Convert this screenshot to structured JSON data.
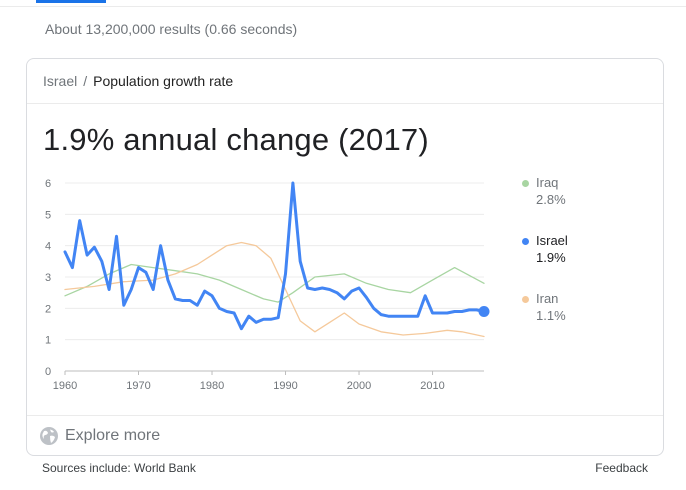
{
  "search": {
    "result_stats": "About 13,200,000 results (0.66 seconds)"
  },
  "card": {
    "breadcrumb": {
      "parent": "Israel",
      "separator": "/",
      "current": "Population growth rate"
    },
    "headline": "1.9% annual change (2017)",
    "explore_label": "Explore more",
    "explore_icon": "globe-icon"
  },
  "footer": {
    "sources": "Sources include: World Bank",
    "feedback": "Feedback"
  },
  "legend": [
    {
      "name": "Iraq",
      "value": "2.8%",
      "color": "#a8d5a2",
      "active": false
    },
    {
      "name": "Israel",
      "value": "1.9%",
      "color": "#4285f4",
      "active": true
    },
    {
      "name": "Iran",
      "value": "1.1%",
      "color": "#f5c99b",
      "active": false
    }
  ],
  "chart_data": {
    "type": "line",
    "ylim": [
      0,
      6
    ],
    "xlim": [
      1960,
      2017
    ],
    "yticks": [
      "0",
      "1",
      "2",
      "3",
      "4",
      "5",
      "6"
    ],
    "xticks": [
      "1960",
      "1970",
      "1980",
      "1990",
      "2000",
      "2010"
    ],
    "grid": true,
    "legend_position": "right",
    "series": [
      {
        "name": "Iraq",
        "color": "#a8d5a2",
        "x": [
          1960,
          1963,
          1966,
          1969,
          1972,
          1975,
          1978,
          1981,
          1984,
          1987,
          1989,
          1991,
          1994,
          1998,
          2001,
          2004,
          2007,
          2010,
          2013,
          2017
        ],
        "values": [
          2.4,
          2.7,
          3.1,
          3.4,
          3.3,
          3.2,
          3.1,
          2.9,
          2.6,
          2.3,
          2.2,
          2.5,
          3.0,
          3.1,
          2.8,
          2.6,
          2.5,
          2.9,
          3.3,
          2.8
        ]
      },
      {
        "name": "Israel",
        "color": "#4285f4",
        "x": [
          1960,
          1961,
          1962,
          1963,
          1964,
          1965,
          1966,
          1967,
          1968,
          1969,
          1970,
          1971,
          1972,
          1973,
          1974,
          1975,
          1976,
          1977,
          1978,
          1979,
          1980,
          1981,
          1982,
          1983,
          1984,
          1985,
          1986,
          1987,
          1988,
          1989,
          1990,
          1991,
          1992,
          1993,
          1994,
          1995,
          1996,
          1997,
          1998,
          1999,
          2000,
          2001,
          2002,
          2003,
          2004,
          2005,
          2006,
          2007,
          2008,
          2009,
          2010,
          2011,
          2012,
          2013,
          2014,
          2015,
          2016,
          2017
        ],
        "values": [
          3.8,
          3.3,
          4.8,
          3.7,
          3.95,
          3.5,
          2.6,
          4.3,
          2.1,
          2.6,
          3.3,
          3.15,
          2.6,
          4.0,
          2.9,
          2.3,
          2.25,
          2.25,
          2.1,
          2.55,
          2.4,
          2.0,
          1.9,
          1.85,
          1.35,
          1.75,
          1.55,
          1.65,
          1.65,
          1.7,
          3.1,
          6.0,
          3.5,
          2.65,
          2.6,
          2.65,
          2.6,
          2.5,
          2.3,
          2.55,
          2.65,
          2.35,
          2.0,
          1.8,
          1.75,
          1.75,
          1.75,
          1.75,
          1.75,
          2.4,
          1.85,
          1.85,
          1.85,
          1.9,
          1.9,
          1.95,
          1.95,
          1.9
        ]
      },
      {
        "name": "Iran",
        "color": "#f5c99b",
        "x": [
          1960,
          1964,
          1968,
          1972,
          1975,
          1978,
          1980,
          1982,
          1984,
          1986,
          1988,
          1990,
          1992,
          1994,
          1996,
          1998,
          2000,
          2003,
          2006,
          2009,
          2012,
          2014,
          2017
        ],
        "values": [
          2.6,
          2.7,
          2.85,
          2.9,
          3.1,
          3.4,
          3.7,
          4.0,
          4.1,
          4.0,
          3.6,
          2.6,
          1.6,
          1.25,
          1.55,
          1.85,
          1.5,
          1.25,
          1.15,
          1.2,
          1.3,
          1.25,
          1.1
        ]
      }
    ]
  }
}
